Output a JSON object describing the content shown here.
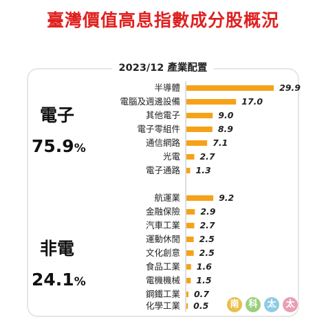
{
  "title": "臺灣價值高息指數成分股概況",
  "colors": {
    "title": "#e02020",
    "bar": "#f5a21a",
    "axis": "#bbbbbb",
    "text": "#222222"
  },
  "groups": [
    {
      "name": "電子",
      "pct_value": "75.9",
      "pct_sign": "%"
    },
    {
      "name": "非電",
      "pct_value": "24.1",
      "pct_sign": "%"
    }
  ],
  "chart_data": {
    "type": "bar",
    "orientation": "horizontal",
    "title": "2023/12 產業配置",
    "categories": [
      "半導體",
      "電腦及週邊設備",
      "其他電子",
      "電子零組件",
      "通信網路",
      "光電",
      "電子通路",
      "航運業",
      "金融保險",
      "汽車工業",
      "運動休閒",
      "文化創意",
      "食品工業",
      "電機機械",
      "鋼鐵工業",
      "化學工業"
    ],
    "values": [
      29.9,
      17.0,
      9.0,
      8.9,
      7.1,
      2.7,
      1.3,
      9.2,
      2.9,
      2.7,
      2.5,
      2.5,
      1.6,
      1.5,
      0.7,
      0.5
    ],
    "value_labels": [
      "29.9",
      "17.0",
      "9.0",
      "8.9",
      "7.1",
      "2.7",
      "1.3",
      "9.2",
      "2.9",
      "2.7",
      "2.5",
      "2.5",
      "1.6",
      "1.5",
      "0.7",
      "0.5"
    ],
    "group_of_category": [
      "電子",
      "電子",
      "電子",
      "電子",
      "電子",
      "電子",
      "電子",
      "非電",
      "非電",
      "非電",
      "非電",
      "非電",
      "非電",
      "非電",
      "非電",
      "非電"
    ],
    "xlabel": "",
    "ylabel": "",
    "xlim": [
      0,
      30
    ],
    "grid": false
  },
  "watermark": {
    "chars": [
      "南",
      "科",
      "太",
      "太"
    ],
    "colors": [
      "#e8bf4a",
      "#9ccf7d",
      "#8fcbe6",
      "#e8a0b4"
    ]
  }
}
